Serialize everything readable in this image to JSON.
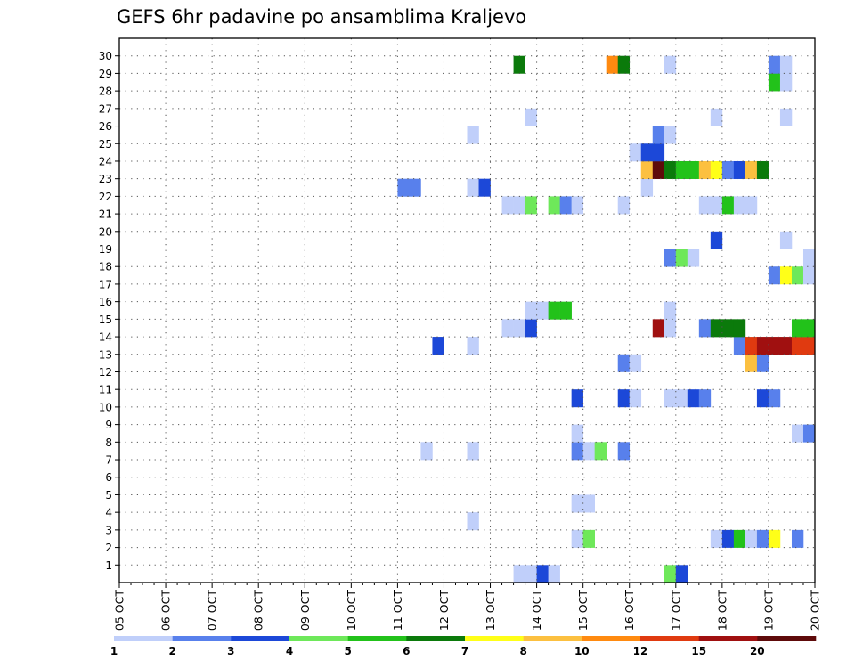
{
  "chart_data": {
    "type": "heatmap",
    "title": "GEFS 6hr padavine po ansamblima Kraljevo",
    "y_ticks": [
      "1",
      "2",
      "3",
      "4",
      "5",
      "6",
      "7",
      "8",
      "9",
      "10",
      "11",
      "12",
      "13",
      "14",
      "15",
      "16",
      "17",
      "18",
      "19",
      "20",
      "21",
      "22",
      "23",
      "24",
      "25",
      "26",
      "27",
      "28",
      "29",
      "30"
    ],
    "x_ticks": [
      "05 OCT",
      "06 OCT",
      "07 OCT",
      "08 OCT",
      "09 OCT",
      "10 OCT",
      "11 OCT",
      "12 OCT",
      "13 OCT",
      "14 OCT",
      "15 OCT",
      "16 OCT",
      "17 OCT",
      "18 OCT",
      "19 OCT",
      "20 OCT"
    ],
    "x_range": [
      "05 OCT 00Z",
      "20 OCT 00Z"
    ],
    "y_range": [
      0,
      30
    ],
    "grid": true,
    "time_step_hours": 6,
    "colorbar": {
      "labels": [
        "1",
        "2",
        "3",
        "4",
        "5",
        "6",
        "7",
        "8",
        "10",
        "12",
        "15",
        "20"
      ],
      "colors": [
        "#c0cffa",
        "#5880ec",
        "#1c48d8",
        "#6ee85a",
        "#22c21a",
        "#0b7a0b",
        "#ffff18",
        "#fcc040",
        "#ff8a10",
        "#e03a10",
        "#a01010",
        "#5e0a0a"
      ]
    },
    "cells": [
      {
        "member": 0,
        "time": "13 OCT 12Z",
        "value": 1
      },
      {
        "member": 0,
        "time": "13 OCT 18Z",
        "value": 1
      },
      {
        "member": 0,
        "time": "14 OCT 00Z",
        "value": 3
      },
      {
        "member": 0,
        "time": "14 OCT 06Z",
        "value": 1
      },
      {
        "member": 0,
        "time": "16 OCT 18Z",
        "value": 4
      },
      {
        "member": 0,
        "time": "17 OCT 00Z",
        "value": 3
      },
      {
        "member": 2,
        "time": "14 OCT 18Z",
        "value": 1
      },
      {
        "member": 2,
        "time": "15 OCT 00Z",
        "value": 4
      },
      {
        "member": 2,
        "time": "17 OCT 18Z",
        "value": 1
      },
      {
        "member": 2,
        "time": "18 OCT 00Z",
        "value": 3
      },
      {
        "member": 2,
        "time": "18 OCT 06Z",
        "value": 5
      },
      {
        "member": 2,
        "time": "18 OCT 12Z",
        "value": 1
      },
      {
        "member": 2,
        "time": "18 OCT 18Z",
        "value": 2
      },
      {
        "member": 2,
        "time": "19 OCT 00Z",
        "value": 7
      },
      {
        "member": 2,
        "time": "19 OCT 12Z",
        "value": 2
      },
      {
        "member": 3,
        "time": "12 OCT 12Z",
        "value": 1
      },
      {
        "member": 4,
        "time": "14 OCT 18Z",
        "value": 1
      },
      {
        "member": 4,
        "time": "15 OCT 00Z",
        "value": 1
      },
      {
        "member": 7,
        "time": "11 OCT 12Z",
        "value": 1
      },
      {
        "member": 7,
        "time": "12 OCT 12Z",
        "value": 1
      },
      {
        "member": 7,
        "time": "14 OCT 18Z",
        "value": 2
      },
      {
        "member": 7,
        "time": "15 OCT 00Z",
        "value": 1
      },
      {
        "member": 7,
        "time": "15 OCT 06Z",
        "value": 4
      },
      {
        "member": 7,
        "time": "15 OCT 18Z",
        "value": 2
      },
      {
        "member": 8,
        "time": "14 OCT 18Z",
        "value": 1
      },
      {
        "member": 8,
        "time": "19 OCT 12Z",
        "value": 1
      },
      {
        "member": 8,
        "time": "19 OCT 18Z",
        "value": 2
      },
      {
        "member": 10,
        "time": "14 OCT 18Z",
        "value": 3
      },
      {
        "member": 10,
        "time": "15 OCT 18Z",
        "value": 3
      },
      {
        "member": 10,
        "time": "16 OCT 00Z",
        "value": 1
      },
      {
        "member": 10,
        "time": "16 OCT 18Z",
        "value": 1
      },
      {
        "member": 10,
        "time": "17 OCT 00Z",
        "value": 1
      },
      {
        "member": 10,
        "time": "17 OCT 06Z",
        "value": 3
      },
      {
        "member": 10,
        "time": "17 OCT 12Z",
        "value": 2
      },
      {
        "member": 10,
        "time": "18 OCT 18Z",
        "value": 3
      },
      {
        "member": 10,
        "time": "19 OCT 00Z",
        "value": 2
      },
      {
        "member": 12,
        "time": "15 OCT 18Z",
        "value": 2
      },
      {
        "member": 12,
        "time": "16 OCT 00Z",
        "value": 1
      },
      {
        "member": 12,
        "time": "18 OCT 12Z",
        "value": 8
      },
      {
        "member": 12,
        "time": "18 OCT 18Z",
        "value": 2
      },
      {
        "member": 13,
        "time": "11 OCT 18Z",
        "value": 3
      },
      {
        "member": 13,
        "time": "12 OCT 12Z",
        "value": 1
      },
      {
        "member": 13,
        "time": "18 OCT 06Z",
        "value": 2
      },
      {
        "member": 13,
        "time": "18 OCT 12Z",
        "value": 10
      },
      {
        "member": 13,
        "time": "18 OCT 18Z",
        "value": 11
      },
      {
        "member": 13,
        "time": "19 OCT 00Z",
        "value": 11
      },
      {
        "member": 13,
        "time": "19 OCT 06Z",
        "value": 11
      },
      {
        "member": 13,
        "time": "19 OCT 12Z",
        "value": 10
      },
      {
        "member": 13,
        "time": "19 OCT 18Z",
        "value": 10
      },
      {
        "member": 14,
        "time": "13 OCT 06Z",
        "value": 1
      },
      {
        "member": 14,
        "time": "13 OCT 12Z",
        "value": 1
      },
      {
        "member": 14,
        "time": "13 OCT 18Z",
        "value": 3
      },
      {
        "member": 14,
        "time": "16 OCT 12Z",
        "value": 11
      },
      {
        "member": 14,
        "time": "16 OCT 18Z",
        "value": 1
      },
      {
        "member": 14,
        "time": "17 OCT 12Z",
        "value": 2
      },
      {
        "member": 14,
        "time": "17 OCT 18Z",
        "value": 6
      },
      {
        "member": 14,
        "time": "18 OCT 00Z",
        "value": 6
      },
      {
        "member": 14,
        "time": "18 OCT 06Z",
        "value": 6
      },
      {
        "member": 14,
        "time": "19 OCT 12Z",
        "value": 5
      },
      {
        "member": 14,
        "time": "19 OCT 18Z",
        "value": 5
      },
      {
        "member": 15,
        "time": "13 OCT 18Z",
        "value": 1
      },
      {
        "member": 15,
        "time": "14 OCT 00Z",
        "value": 1
      },
      {
        "member": 15,
        "time": "14 OCT 06Z",
        "value": 5
      },
      {
        "member": 15,
        "time": "14 OCT 12Z",
        "value": 5
      },
      {
        "member": 15,
        "time": "16 OCT 18Z",
        "value": 1
      },
      {
        "member": 17,
        "time": "19 OCT 00Z",
        "value": 2
      },
      {
        "member": 17,
        "time": "19 OCT 06Z",
        "value": 7
      },
      {
        "member": 17,
        "time": "19 OCT 12Z",
        "value": 4
      },
      {
        "member": 17,
        "time": "19 OCT 18Z",
        "value": 1
      },
      {
        "member": 18,
        "time": "16 OCT 18Z",
        "value": 2
      },
      {
        "member": 18,
        "time": "17 OCT 00Z",
        "value": 4
      },
      {
        "member": 18,
        "time": "17 OCT 06Z",
        "value": 1
      },
      {
        "member": 18,
        "time": "19 OCT 18Z",
        "value": 1
      },
      {
        "member": 19,
        "time": "17 OCT 18Z",
        "value": 3
      },
      {
        "member": 19,
        "time": "19 OCT 06Z",
        "value": 1
      },
      {
        "member": 21,
        "time": "13 OCT 06Z",
        "value": 1
      },
      {
        "member": 21,
        "time": "13 OCT 12Z",
        "value": 1
      },
      {
        "member": 21,
        "time": "13 OCT 18Z",
        "value": 4
      },
      {
        "member": 21,
        "time": "14 OCT 06Z",
        "value": 4
      },
      {
        "member": 21,
        "time": "14 OCT 12Z",
        "value": 2
      },
      {
        "member": 21,
        "time": "14 OCT 18Z",
        "value": 1
      },
      {
        "member": 21,
        "time": "15 OCT 18Z",
        "value": 1
      },
      {
        "member": 21,
        "time": "17 OCT 12Z",
        "value": 1
      },
      {
        "member": 21,
        "time": "17 OCT 18Z",
        "value": 1
      },
      {
        "member": 21,
        "time": "18 OCT 00Z",
        "value": 5
      },
      {
        "member": 21,
        "time": "18 OCT 06Z",
        "value": 1
      },
      {
        "member": 21,
        "time": "18 OCT 12Z",
        "value": 1
      },
      {
        "member": 22,
        "time": "11 OCT 00Z",
        "value": 2
      },
      {
        "member": 22,
        "time": "11 OCT 06Z",
        "value": 2
      },
      {
        "member": 22,
        "time": "12 OCT 12Z",
        "value": 1
      },
      {
        "member": 22,
        "time": "12 OCT 18Z",
        "value": 3
      },
      {
        "member": 22,
        "time": "16 OCT 06Z",
        "value": 1
      },
      {
        "member": 23,
        "time": "16 OCT 06Z",
        "value": 8
      },
      {
        "member": 23,
        "time": "16 OCT 12Z",
        "value": 12
      },
      {
        "member": 23,
        "time": "16 OCT 18Z",
        "value": 6
      },
      {
        "member": 23,
        "time": "17 OCT 00Z",
        "value": 5
      },
      {
        "member": 23,
        "time": "17 OCT 06Z",
        "value": 5
      },
      {
        "member": 23,
        "time": "17 OCT 12Z",
        "value": 8
      },
      {
        "member": 23,
        "time": "17 OCT 18Z",
        "value": 7
      },
      {
        "member": 23,
        "time": "18 OCT 00Z",
        "value": 2
      },
      {
        "member": 23,
        "time": "18 OCT 06Z",
        "value": 3
      },
      {
        "member": 23,
        "time": "18 OCT 12Z",
        "value": 8
      },
      {
        "member": 23,
        "time": "18 OCT 18Z",
        "value": 6
      },
      {
        "member": 24,
        "time": "16 OCT 00Z",
        "value": 1
      },
      {
        "member": 24,
        "time": "16 OCT 06Z",
        "value": 3
      },
      {
        "member": 24,
        "time": "16 OCT 12Z",
        "value": 3
      },
      {
        "member": 25,
        "time": "12 OCT 12Z",
        "value": 1
      },
      {
        "member": 25,
        "time": "16 OCT 12Z",
        "value": 2
      },
      {
        "member": 25,
        "time": "16 OCT 18Z",
        "value": 1
      },
      {
        "member": 26,
        "time": "13 OCT 18Z",
        "value": 1
      },
      {
        "member": 26,
        "time": "17 OCT 18Z",
        "value": 1
      },
      {
        "member": 26,
        "time": "19 OCT 06Z",
        "value": 1
      },
      {
        "member": 28,
        "time": "19 OCT 00Z",
        "value": 5
      },
      {
        "member": 28,
        "time": "19 OCT 06Z",
        "value": 1
      },
      {
        "member": 29,
        "time": "13 OCT 12Z",
        "value": 6
      },
      {
        "member": 29,
        "time": "15 OCT 12Z",
        "value": 9
      },
      {
        "member": 29,
        "time": "15 OCT 18Z",
        "value": 6
      },
      {
        "member": 29,
        "time": "16 OCT 18Z",
        "value": 1
      },
      {
        "member": 29,
        "time": "19 OCT 00Z",
        "value": 2
      },
      {
        "member": 29,
        "time": "19 OCT 06Z",
        "value": 1
      }
    ]
  }
}
